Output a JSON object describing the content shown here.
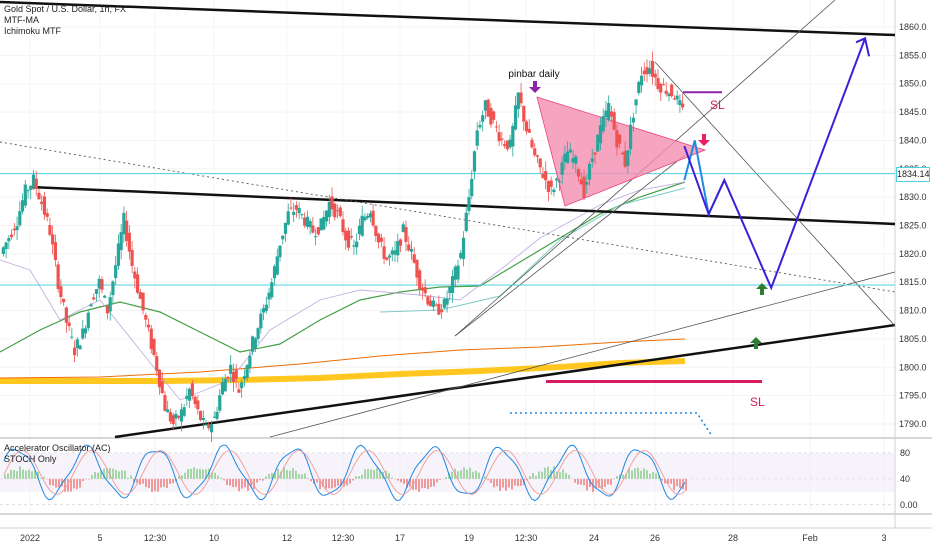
{
  "legend": {
    "title": "Gold Spot / U.S. Dollar, 1h, FX",
    "indicators": [
      "MTF-MA",
      "Ichimoku MTF"
    ]
  },
  "oscillator_legend": {
    "indicators": [
      "Accelerator Oscillator (AC)",
      "STOCH Only"
    ]
  },
  "annotations": {
    "pinbar": "pinbar daily",
    "sl_top": "SL",
    "sl_bottom": "SL"
  },
  "current_price": "1834.14",
  "colors": {
    "bull": "#26a69a",
    "bear": "#ef5350",
    "projection": "#3f1ed8",
    "projection_alt": "#1e88e5",
    "cyan": "#4dd0e1",
    "triangle": "#f48fb1",
    "ma_green": "#43a047",
    "ma_orange": "#ef6c00",
    "ichimoku_band": "#ffc107",
    "sl_purple": "#8e24aa",
    "sl_red": "#d81b60"
  },
  "chart_data": [
    {
      "type": "candlestick",
      "title": "Gold Spot / U.S. Dollar, 1h, FX",
      "y_ticks": [
        1790,
        1795,
        1800,
        1805,
        1810,
        1815,
        1820,
        1825,
        1830,
        1835,
        1840,
        1845,
        1850,
        1855,
        1860
      ],
      "ylim": [
        1788,
        1863
      ],
      "x_ticks": [
        "2022",
        "5",
        "12:30",
        "10",
        "12",
        "12:30",
        "17",
        "19",
        "12:30",
        "24",
        "26",
        "28",
        "Feb",
        "3"
      ],
      "price_path": [
        1820,
        1823,
        1826,
        1831,
        1833,
        1829,
        1824,
        1815,
        1808,
        1803,
        1806,
        1812,
        1815,
        1810,
        1818,
        1826,
        1818,
        1812,
        1806,
        1800,
        1793,
        1790,
        1792,
        1796,
        1792,
        1789,
        1791,
        1797,
        1800,
        1796,
        1801,
        1806,
        1810,
        1815,
        1822,
        1827,
        1828,
        1826,
        1824,
        1825,
        1829,
        1827,
        1823,
        1821,
        1826,
        1828,
        1822,
        1819,
        1820,
        1824,
        1820,
        1815,
        1812,
        1810,
        1811,
        1815,
        1820,
        1830,
        1842,
        1846,
        1843,
        1840,
        1839,
        1848,
        1842,
        1837,
        1834,
        1831,
        1834,
        1838,
        1836,
        1831,
        1837,
        1842,
        1846,
        1840,
        1836,
        1845,
        1852,
        1853,
        1850,
        1849,
        1848,
        1845
      ],
      "current_price": 1834.14,
      "horizontal_levels": [
        1834.14,
        1814.5
      ],
      "projection_path": [
        [
          26.6,
          1839
        ],
        [
          27.3,
          1827
        ],
        [
          27.75,
          1833
        ],
        [
          29.1,
          1814
        ],
        [
          31.8,
          1858
        ]
      ],
      "alt_projection_path": [
        [
          26.6,
          1833
        ],
        [
          26.9,
          1840
        ],
        [
          27.3,
          1827
        ],
        [
          27.75,
          1833
        ]
      ],
      "arrows": [
        {
          "type": "pinbar",
          "direction": "down",
          "date": "21 (12:30)",
          "price": 1849
        },
        {
          "type": "entry",
          "direction": "down",
          "date": "26",
          "price": 1842
        },
        {
          "type": "target",
          "direction": "up",
          "date": "29",
          "price": 1814
        },
        {
          "type": "support",
          "direction": "up",
          "date": "29",
          "price": 1804
        }
      ],
      "sl_levels": [
        1848.5,
        1797.5
      ]
    },
    {
      "type": "line",
      "title": "Accelerator Oscillator (AC) / STOCH Only",
      "y_ticks": [
        0.0,
        40,
        80
      ],
      "ylim": [
        -5,
        95
      ],
      "description_series": "stochastic oscillation"
    }
  ]
}
